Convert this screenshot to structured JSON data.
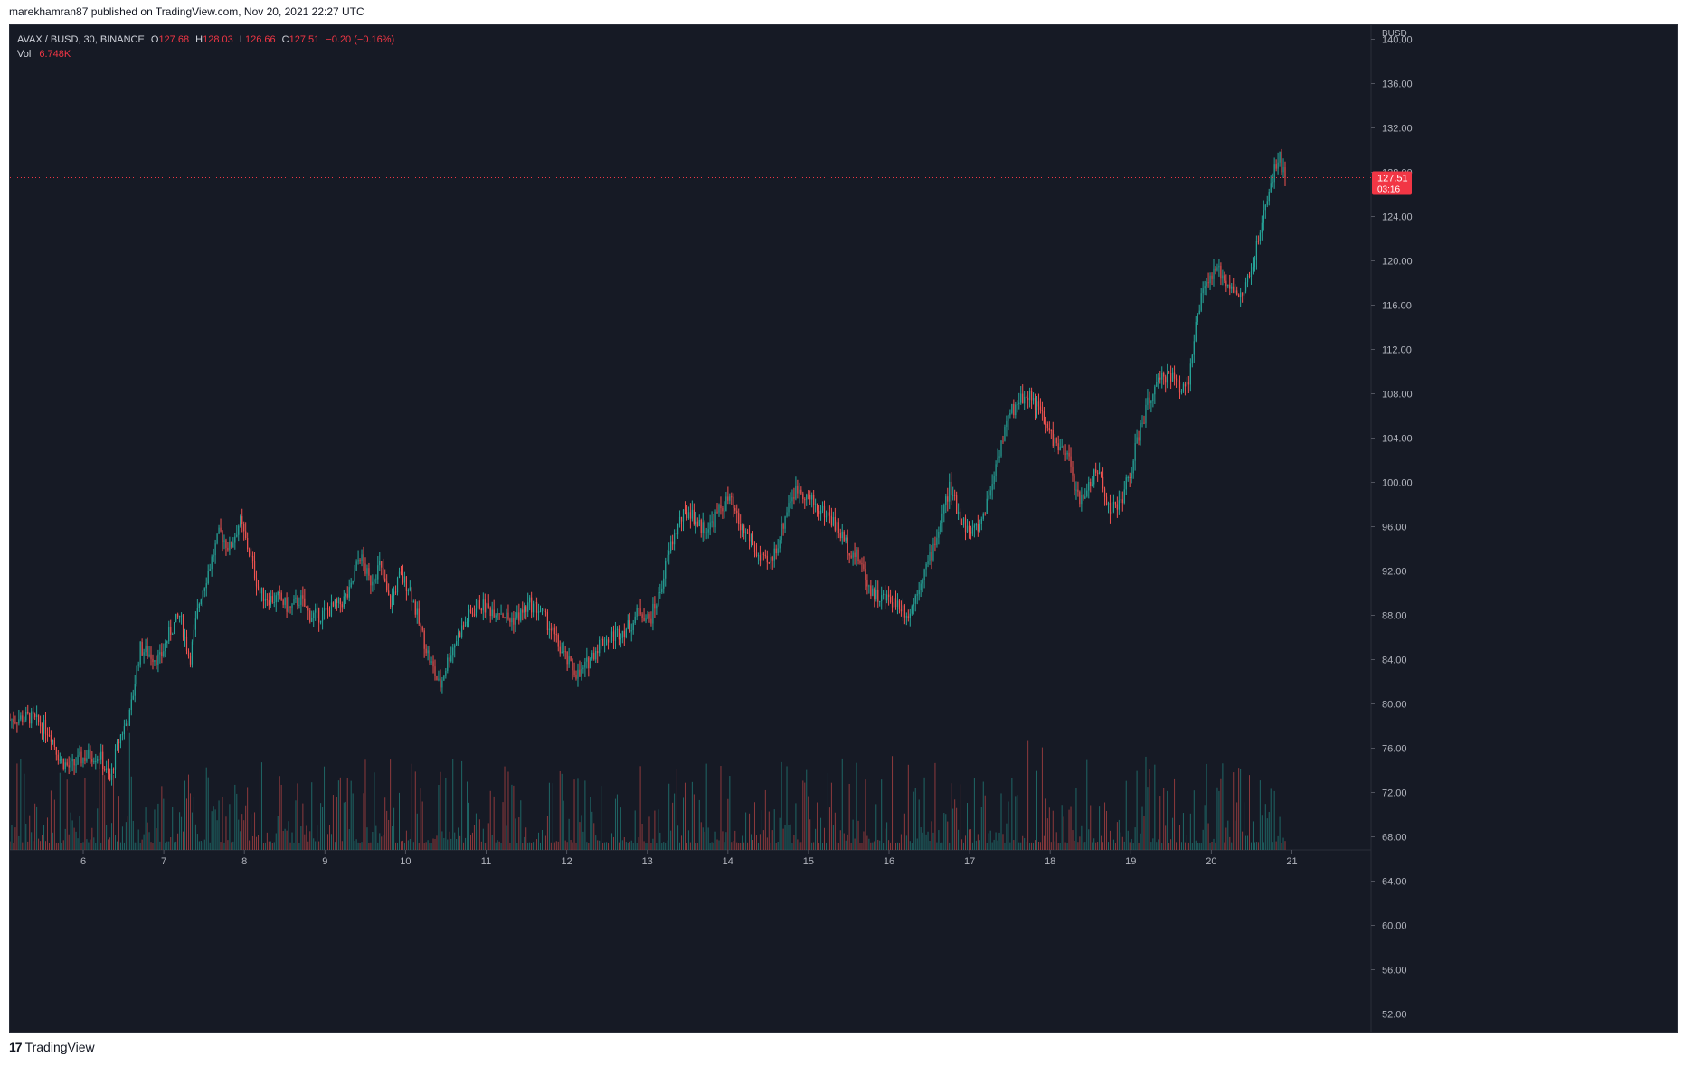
{
  "publish_line": "marekhamran87 published on TradingView.com, Nov 20, 2021 22:27 UTC",
  "legend": {
    "symbol": "AVAX / BUSD, 30, BINANCE",
    "o_label": "O",
    "o": "127.68",
    "h_label": "H",
    "h": "128.03",
    "l_label": "L",
    "l": "126.66",
    "c_label": "C",
    "c": "127.51",
    "change": "−0.20 (−0.16%)",
    "vol_label": "Vol",
    "vol": "6.748K"
  },
  "footer": {
    "brand": "TradingView",
    "logo_icon": "17"
  },
  "colors": {
    "up": "#26a69a",
    "down": "#ef5350",
    "bg": "#161a25",
    "grid": "#1f2330",
    "axis_text": "#b2b5be",
    "price_tag": "#f23645"
  },
  "chart_data": {
    "type": "candlestick",
    "currency_label": "BUSD",
    "price_axis": {
      "min": 50,
      "max": 142,
      "ticks": [
        "140.00",
        "136.00",
        "132.00",
        "128.00",
        "124.00",
        "120.00",
        "116.00",
        "112.00",
        "108.00",
        "104.00",
        "100.00",
        "96.00",
        "92.00",
        "88.00",
        "84.00",
        "80.00",
        "76.00",
        "72.00",
        "68.00",
        "64.00",
        "60.00",
        "56.00",
        "52.00"
      ]
    },
    "x_ticks": [
      "6",
      "7",
      "8",
      "9",
      "10",
      "11",
      "12",
      "13",
      "14",
      "15",
      "16",
      "17",
      "18",
      "19",
      "20",
      "21"
    ],
    "last_price": {
      "value": 127.51,
      "label": "127.51",
      "countdown": "03:16"
    },
    "price_path": [
      [
        0,
        78.6
      ],
      [
        2,
        78.8
      ],
      [
        4,
        77.5
      ],
      [
        5,
        75.0
      ],
      [
        6,
        74.2
      ],
      [
        7,
        75.0
      ],
      [
        8,
        75.4
      ],
      [
        9,
        75.3
      ],
      [
        10,
        73.0
      ],
      [
        10.5,
        75.2
      ],
      [
        11,
        77.0
      ],
      [
        12,
        79.0
      ],
      [
        13,
        85.0
      ],
      [
        14,
        84.5
      ],
      [
        15,
        84.0
      ],
      [
        16,
        86.5
      ],
      [
        17,
        88.0
      ],
      [
        18,
        84.0
      ],
      [
        19,
        89.5
      ],
      [
        20,
        92.5
      ],
      [
        21,
        95.5
      ],
      [
        22,
        94.0
      ],
      [
        23,
        96.5
      ],
      [
        24,
        93.5
      ],
      [
        25,
        90.0
      ],
      [
        26,
        89.5
      ],
      [
        27,
        89.5
      ],
      [
        28,
        88.5
      ],
      [
        29,
        89.5
      ],
      [
        30,
        88.0
      ],
      [
        31,
        88.0
      ],
      [
        32,
        88.5
      ],
      [
        33,
        89.0
      ],
      [
        34,
        90.0
      ],
      [
        35,
        93.5
      ],
      [
        36,
        91.0
      ],
      [
        37,
        92.5
      ],
      [
        38,
        89.0
      ],
      [
        39,
        91.5
      ],
      [
        40,
        90.5
      ],
      [
        41,
        87.0
      ],
      [
        42,
        84.0
      ],
      [
        43,
        81.5
      ],
      [
        44,
        84.5
      ],
      [
        45,
        86.5
      ],
      [
        46,
        88.0
      ],
      [
        47,
        89.0
      ],
      [
        48,
        88.5
      ],
      [
        49,
        88.5
      ],
      [
        50,
        87.5
      ],
      [
        51,
        88.0
      ],
      [
        52,
        89.0
      ],
      [
        53,
        88.5
      ],
      [
        54,
        87.0
      ],
      [
        55,
        85.0
      ],
      [
        56,
        83.5
      ],
      [
        57,
        82.5
      ],
      [
        58,
        84.0
      ],
      [
        59,
        85.5
      ],
      [
        60,
        86.0
      ],
      [
        61,
        86.5
      ],
      [
        62,
        87.0
      ],
      [
        63,
        88.5
      ],
      [
        64,
        87.5
      ],
      [
        65,
        90.0
      ],
      [
        66,
        94.0
      ],
      [
        67,
        96.5
      ],
      [
        68,
        97.5
      ],
      [
        69,
        96.0
      ],
      [
        70,
        96.0
      ],
      [
        71,
        97.5
      ],
      [
        72,
        98.5
      ],
      [
        73,
        96.0
      ],
      [
        74,
        95.0
      ],
      [
        75,
        93.0
      ],
      [
        76,
        92.5
      ],
      [
        77,
        95.0
      ],
      [
        78,
        98.5
      ],
      [
        79,
        99.5
      ],
      [
        80,
        98.5
      ],
      [
        81,
        97.5
      ],
      [
        82,
        97.0
      ],
      [
        83,
        95.5
      ],
      [
        84,
        94.0
      ],
      [
        85,
        93.0
      ],
      [
        86,
        90.5
      ],
      [
        87,
        89.5
      ],
      [
        88,
        89.5
      ],
      [
        89,
        89.0
      ],
      [
        90,
        88.0
      ],
      [
        91,
        91.0
      ],
      [
        92,
        93.0
      ],
      [
        93,
        96.0
      ],
      [
        94,
        99.5
      ],
      [
        95,
        97.0
      ],
      [
        96,
        95.5
      ],
      [
        97,
        96.0
      ],
      [
        98,
        99.0
      ],
      [
        99,
        103.0
      ],
      [
        100,
        106.0
      ],
      [
        101,
        107.5
      ],
      [
        102,
        108.0
      ],
      [
        103,
        106.5
      ],
      [
        104,
        104.5
      ],
      [
        105,
        103.0
      ],
      [
        106,
        102.0
      ],
      [
        107,
        98.0
      ],
      [
        108,
        100.0
      ],
      [
        109,
        101.0
      ],
      [
        110,
        97.5
      ],
      [
        111,
        98.0
      ],
      [
        112,
        100.5
      ],
      [
        113,
        104.5
      ],
      [
        114,
        107.5
      ],
      [
        115,
        109.0
      ],
      [
        116,
        110.0
      ],
      [
        117,
        108.5
      ],
      [
        118,
        109.5
      ],
      [
        119,
        116.0
      ],
      [
        120,
        118.5
      ],
      [
        121,
        119.0
      ],
      [
        122,
        118.0
      ],
      [
        123,
        116.5
      ],
      [
        124,
        118.5
      ],
      [
        125,
        122.0
      ],
      [
        126,
        126.5
      ],
      [
        127,
        129.5
      ],
      [
        127.6,
        127.5
      ]
    ],
    "volume_scale": {
      "min": 50,
      "max": 66
    }
  }
}
